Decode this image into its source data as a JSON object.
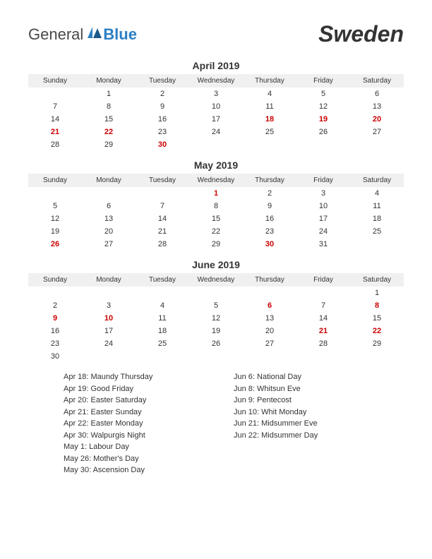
{
  "logo": {
    "text1": "General",
    "text2": "Blue"
  },
  "country": "Sweden",
  "weekdays": [
    "Sunday",
    "Monday",
    "Tuesday",
    "Wednesday",
    "Thursday",
    "Friday",
    "Saturday"
  ],
  "colors": {
    "holiday": "#cc0000",
    "text": "#333333",
    "header_bg": "#f0f0f0",
    "logo_gray": "#4a4a4a",
    "logo_blue": "#2b7fc4",
    "background": "#ffffff"
  },
  "months": [
    {
      "title": "April 2019",
      "weeks": [
        [
          {
            "d": ""
          },
          {
            "d": "1"
          },
          {
            "d": "2"
          },
          {
            "d": "3"
          },
          {
            "d": "4"
          },
          {
            "d": "5"
          },
          {
            "d": "6"
          }
        ],
        [
          {
            "d": "7"
          },
          {
            "d": "8"
          },
          {
            "d": "9"
          },
          {
            "d": "10"
          },
          {
            "d": "11"
          },
          {
            "d": "12"
          },
          {
            "d": "13"
          }
        ],
        [
          {
            "d": "14"
          },
          {
            "d": "15"
          },
          {
            "d": "16"
          },
          {
            "d": "17"
          },
          {
            "d": "18",
            "h": true
          },
          {
            "d": "19",
            "h": true
          },
          {
            "d": "20",
            "h": true
          }
        ],
        [
          {
            "d": "21",
            "h": true
          },
          {
            "d": "22",
            "h": true
          },
          {
            "d": "23"
          },
          {
            "d": "24"
          },
          {
            "d": "25"
          },
          {
            "d": "26"
          },
          {
            "d": "27"
          }
        ],
        [
          {
            "d": "28"
          },
          {
            "d": "29"
          },
          {
            "d": "30",
            "h": true
          },
          {
            "d": ""
          },
          {
            "d": ""
          },
          {
            "d": ""
          },
          {
            "d": ""
          }
        ]
      ]
    },
    {
      "title": "May 2019",
      "weeks": [
        [
          {
            "d": ""
          },
          {
            "d": ""
          },
          {
            "d": ""
          },
          {
            "d": "1",
            "h": true
          },
          {
            "d": "2"
          },
          {
            "d": "3"
          },
          {
            "d": "4"
          }
        ],
        [
          {
            "d": "5"
          },
          {
            "d": "6"
          },
          {
            "d": "7"
          },
          {
            "d": "8"
          },
          {
            "d": "9"
          },
          {
            "d": "10"
          },
          {
            "d": "11"
          }
        ],
        [
          {
            "d": "12"
          },
          {
            "d": "13"
          },
          {
            "d": "14"
          },
          {
            "d": "15"
          },
          {
            "d": "16"
          },
          {
            "d": "17"
          },
          {
            "d": "18"
          }
        ],
        [
          {
            "d": "19"
          },
          {
            "d": "20"
          },
          {
            "d": "21"
          },
          {
            "d": "22"
          },
          {
            "d": "23"
          },
          {
            "d": "24"
          },
          {
            "d": "25"
          }
        ],
        [
          {
            "d": "26",
            "h": true
          },
          {
            "d": "27"
          },
          {
            "d": "28"
          },
          {
            "d": "29"
          },
          {
            "d": "30",
            "h": true
          },
          {
            "d": "31"
          },
          {
            "d": ""
          }
        ]
      ]
    },
    {
      "title": "June 2019",
      "weeks": [
        [
          {
            "d": ""
          },
          {
            "d": ""
          },
          {
            "d": ""
          },
          {
            "d": ""
          },
          {
            "d": ""
          },
          {
            "d": ""
          },
          {
            "d": "1"
          }
        ],
        [
          {
            "d": "2"
          },
          {
            "d": "3"
          },
          {
            "d": "4"
          },
          {
            "d": "5"
          },
          {
            "d": "6",
            "h": true
          },
          {
            "d": "7"
          },
          {
            "d": "8",
            "h": true
          }
        ],
        [
          {
            "d": "9",
            "h": true
          },
          {
            "d": "10",
            "h": true
          },
          {
            "d": "11"
          },
          {
            "d": "12"
          },
          {
            "d": "13"
          },
          {
            "d": "14"
          },
          {
            "d": "15"
          }
        ],
        [
          {
            "d": "16"
          },
          {
            "d": "17"
          },
          {
            "d": "18"
          },
          {
            "d": "19"
          },
          {
            "d": "20"
          },
          {
            "d": "21",
            "h": true
          },
          {
            "d": "22",
            "h": true
          }
        ],
        [
          {
            "d": "23"
          },
          {
            "d": "24"
          },
          {
            "d": "25"
          },
          {
            "d": "26"
          },
          {
            "d": "27"
          },
          {
            "d": "28"
          },
          {
            "d": "29"
          }
        ],
        [
          {
            "d": "30"
          },
          {
            "d": ""
          },
          {
            "d": ""
          },
          {
            "d": ""
          },
          {
            "d": ""
          },
          {
            "d": ""
          },
          {
            "d": ""
          }
        ]
      ]
    }
  ],
  "holidays_left": [
    "Apr 18: Maundy Thursday",
    "Apr 19: Good Friday",
    "Apr 20: Easter Saturday",
    "Apr 21: Easter Sunday",
    "Apr 22: Easter Monday",
    "Apr 30: Walpurgis Night",
    "May 1: Labour Day",
    "May 26: Mother's Day",
    "May 30: Ascension Day"
  ],
  "holidays_right": [
    "Jun 6: National Day",
    "Jun 8: Whitsun Eve",
    "Jun 9: Pentecost",
    "Jun 10: Whit Monday",
    "Jun 21: Midsummer Eve",
    "Jun 22: Midsummer Day"
  ]
}
